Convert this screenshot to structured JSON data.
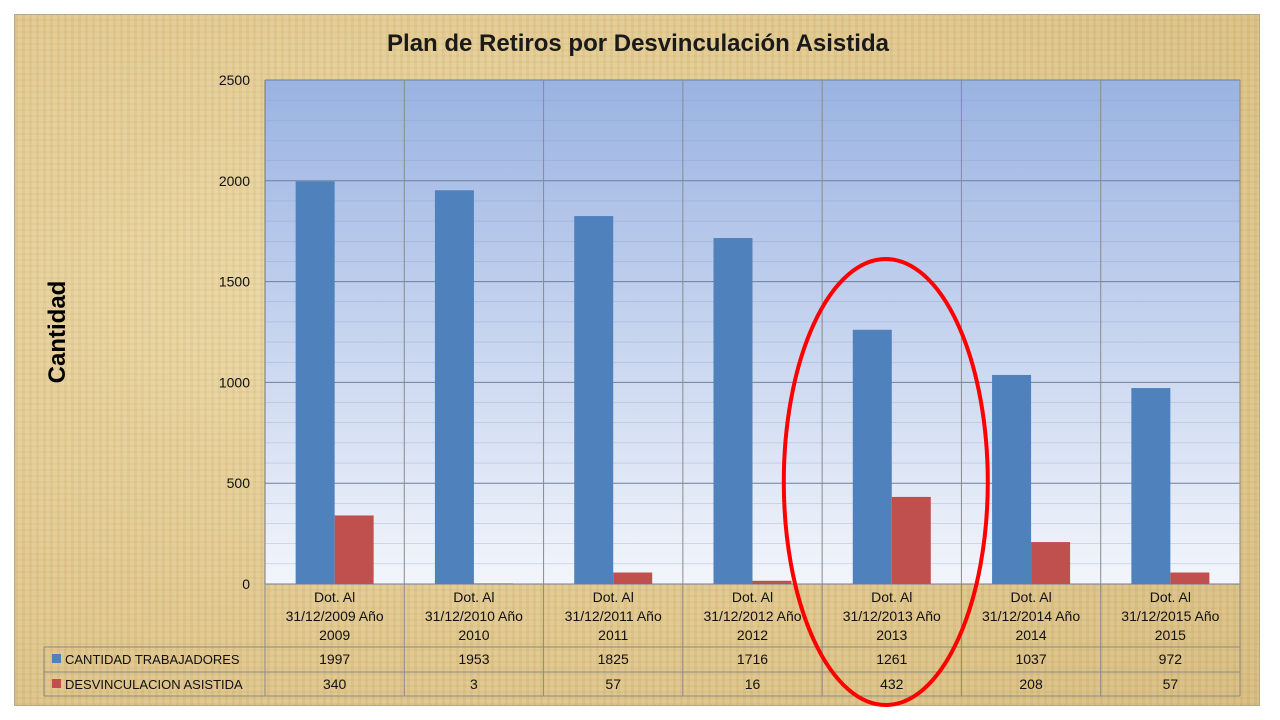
{
  "chart_data": {
    "type": "bar",
    "title": "Plan de Retiros por Desvinculación Asistida",
    "ylabel": "Cantidad",
    "xlabel": "",
    "ylim": [
      0,
      2500
    ],
    "yticks": [
      0,
      500,
      1000,
      1500,
      2000,
      2500
    ],
    "grid": true,
    "legend": "data table below chart",
    "categories": [
      [
        "Dot. Al",
        "31/12/2009 Año",
        "2009"
      ],
      [
        "Dot. Al",
        "31/12/2010 Año",
        "2010"
      ],
      [
        "Dot. Al",
        "31/12/2011 Año",
        "2011"
      ],
      [
        "Dot. Al",
        "31/12/2012 Año",
        "2012"
      ],
      [
        "Dot. Al",
        "31/12/2013 Año",
        "2013"
      ],
      [
        "Dot. Al",
        "31/12/2014 Año",
        "2014"
      ],
      [
        "Dot. Al",
        "31/12/2015 Año",
        "2015"
      ]
    ],
    "series": [
      {
        "name": "CANTIDAD TRABAJADORES",
        "color": "#4f81bd",
        "values": [
          1997,
          1953,
          1825,
          1716,
          1261,
          1037,
          972
        ]
      },
      {
        "name": "DESVINCULACION ASISTIDA",
        "color": "#c0504d",
        "values": [
          340,
          3,
          57,
          16,
          432,
          208,
          57
        ]
      }
    ],
    "annotations": [
      {
        "type": "ellipse",
        "color": "#ff0000",
        "highlights_category_index": 4
      }
    ]
  }
}
